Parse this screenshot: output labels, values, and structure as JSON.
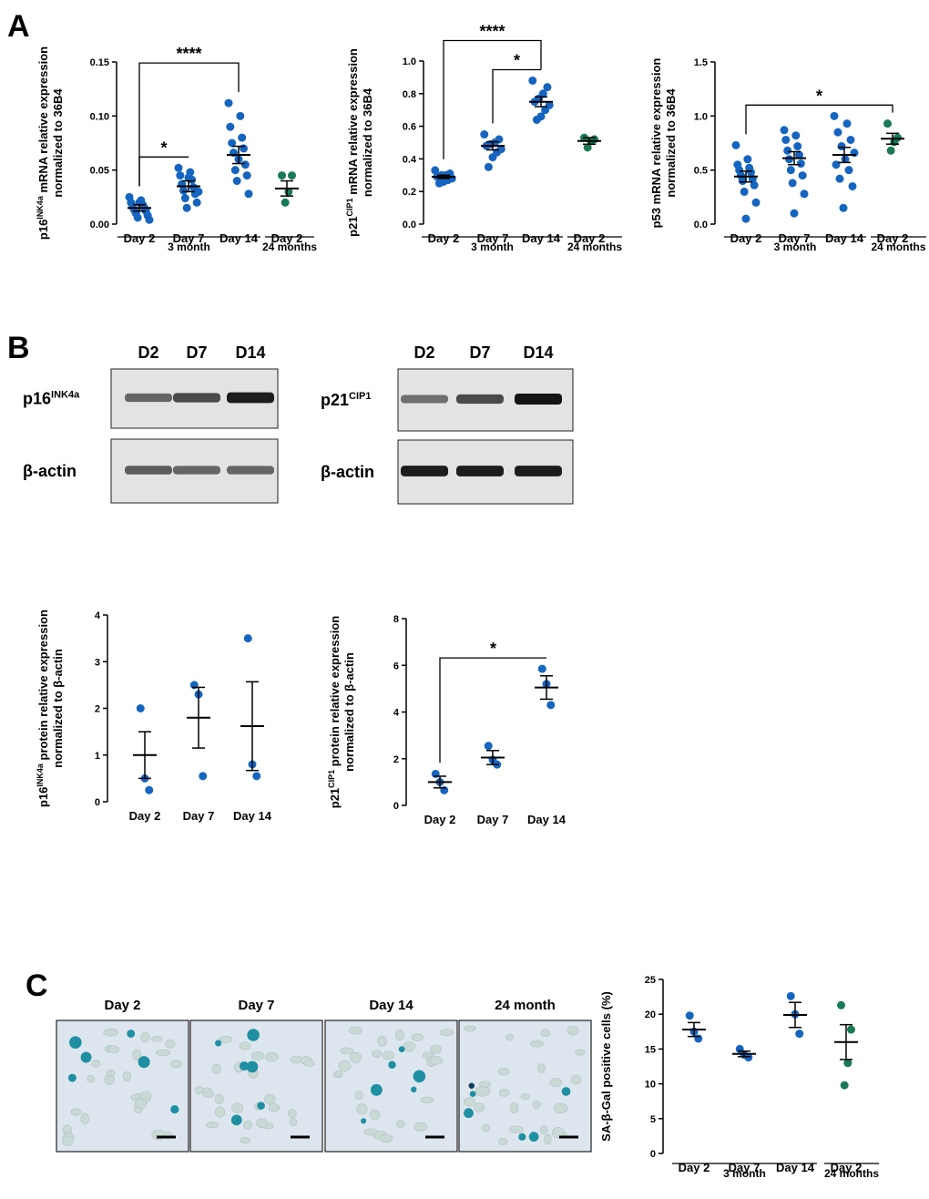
{
  "panel_labels": {
    "a": "A",
    "b": "B",
    "c": "C"
  },
  "colors": {
    "blue": "#1565c0",
    "green": "#1a7a55",
    "black": "#000000"
  },
  "chart_data": [
    {
      "id": "chartA1",
      "type": "scatter",
      "ylabel_html": [
        "p16",
        "INK4a",
        " mRNA relative expression"
      ],
      "ylabel2": "normalized to 36B4",
      "ylim": [
        0,
        0.15
      ],
      "ticks": [
        0.0,
        0.05,
        0.1,
        0.15
      ],
      "tick_labels": [
        "0.00",
        "0.05",
        "0.10",
        "0.15"
      ],
      "categories": [
        "Day 2",
        "Day 7",
        "Day 14",
        "Day 2"
      ],
      "groups": [
        {
          "label": "3 month",
          "from": 0,
          "to": 2
        },
        {
          "label": "24 months",
          "from": 3,
          "to": 3
        }
      ],
      "series": [
        {
          "name": "Day 2",
          "color": "blue",
          "mean": 0.015,
          "sem": 0.003,
          "points": [
            0.025,
            0.022,
            0.02,
            0.018,
            0.016,
            0.015,
            0.013,
            0.012,
            0.01,
            0.008,
            0.006,
            0.004,
            0.02
          ]
        },
        {
          "name": "Day 7",
          "color": "blue",
          "mean": 0.035,
          "sem": 0.005,
          "points": [
            0.052,
            0.048,
            0.045,
            0.041,
            0.037,
            0.034,
            0.031,
            0.028,
            0.024,
            0.02,
            0.015,
            0.03,
            0.043
          ]
        },
        {
          "name": "Day 14",
          "color": "blue",
          "mean": 0.064,
          "sem": 0.008,
          "points": [
            0.112,
            0.1,
            0.09,
            0.08,
            0.075,
            0.07,
            0.066,
            0.055,
            0.05,
            0.045,
            0.04,
            0.028,
            0.06
          ]
        },
        {
          "name": "Day 2",
          "color": "green",
          "mean": 0.033,
          "sem": 0.007,
          "points": [
            0.045,
            0.045,
            0.03,
            0.02
          ]
        }
      ],
      "sig": [
        {
          "from": 0,
          "to": 1,
          "label": "*"
        },
        {
          "from": 0,
          "to": 2,
          "label": "****"
        }
      ]
    },
    {
      "id": "chartA2",
      "type": "scatter",
      "ylabel_html": [
        "p21",
        "CIP1",
        " mRNA relative expression"
      ],
      "ylabel2": "normalized to 36B4",
      "ylim": [
        0,
        1.0
      ],
      "ticks": [
        0.0,
        0.2,
        0.4,
        0.6,
        0.8,
        1.0
      ],
      "tick_labels": [
        "0.0",
        "0.2",
        "0.4",
        "0.6",
        "0.8",
        "1.0"
      ],
      "categories": [
        "Day 2",
        "Day 7",
        "Day 14",
        "Day 2"
      ],
      "groups": [
        {
          "label": "3 month",
          "from": 0,
          "to": 2
        },
        {
          "label": "24 months",
          "from": 3,
          "to": 3
        }
      ],
      "series": [
        {
          "name": "Day 2",
          "color": "blue",
          "mean": 0.29,
          "sem": 0.01,
          "points": [
            0.33,
            0.31,
            0.3,
            0.3,
            0.29,
            0.28,
            0.27,
            0.26,
            0.25
          ]
        },
        {
          "name": "Day 7",
          "color": "blue",
          "mean": 0.48,
          "sem": 0.025,
          "points": [
            0.55,
            0.52,
            0.5,
            0.49,
            0.48,
            0.46,
            0.44,
            0.41,
            0.35
          ]
        },
        {
          "name": "Day 14",
          "color": "blue",
          "mean": 0.75,
          "sem": 0.03,
          "points": [
            0.88,
            0.84,
            0.8,
            0.77,
            0.75,
            0.73,
            0.7,
            0.66,
            0.64
          ]
        },
        {
          "name": "Day 2",
          "color": "green",
          "mean": 0.51,
          "sem": 0.02,
          "points": [
            0.53,
            0.52,
            0.51,
            0.47
          ]
        }
      ],
      "sig": [
        {
          "from": 1,
          "to": 2,
          "label": "*"
        },
        {
          "from": 0,
          "to": 2,
          "label": "****"
        }
      ]
    },
    {
      "id": "chartA3",
      "type": "scatter",
      "ylabel_html": [
        "p53 mRNA relative expression",
        "",
        ""
      ],
      "ylabel2": "normalized to 36B4",
      "ylim": [
        0,
        1.5
      ],
      "ticks": [
        0.0,
        0.5,
        1.0,
        1.5
      ],
      "tick_labels": [
        "0.0",
        "0.5",
        "1.0",
        "1.5"
      ],
      "categories": [
        "Day 2",
        "Day 7",
        "Day 14",
        "Day 2"
      ],
      "groups": [
        {
          "label": "3 month",
          "from": 0,
          "to": 2
        },
        {
          "label": "24 months",
          "from": 3,
          "to": 3
        }
      ],
      "series": [
        {
          "name": "Day 2",
          "color": "blue",
          "mean": 0.44,
          "sem": 0.05,
          "points": [
            0.73,
            0.6,
            0.55,
            0.52,
            0.5,
            0.48,
            0.45,
            0.42,
            0.4,
            0.36,
            0.3,
            0.2,
            0.05
          ]
        },
        {
          "name": "Day 7",
          "color": "blue",
          "mean": 0.61,
          "sem": 0.06,
          "points": [
            0.87,
            0.82,
            0.78,
            0.72,
            0.68,
            0.64,
            0.6,
            0.56,
            0.5,
            0.45,
            0.38,
            0.28,
            0.1
          ]
        },
        {
          "name": "Day 14",
          "color": "blue",
          "mean": 0.64,
          "sem": 0.07,
          "points": [
            1.0,
            0.93,
            0.85,
            0.78,
            0.72,
            0.66,
            0.6,
            0.55,
            0.5,
            0.42,
            0.35,
            0.15
          ]
        },
        {
          "name": "Day 2",
          "color": "green",
          "mean": 0.79,
          "sem": 0.05,
          "points": [
            0.93,
            0.8,
            0.76,
            0.68
          ]
        }
      ],
      "sig": [
        {
          "from": 0,
          "to": 3,
          "label": "*"
        }
      ]
    },
    {
      "id": "chartB1",
      "type": "scatter",
      "ylabel_html": [
        "p16",
        "INK4a",
        " protein relative expression"
      ],
      "ylabel2": "normalized to β-actin",
      "ylim": [
        0,
        4
      ],
      "ticks": [
        0,
        1,
        2,
        3,
        4
      ],
      "tick_labels": [
        "0",
        "1",
        "2",
        "3",
        "4"
      ],
      "categories": [
        "Day 2",
        "Day 7",
        "Day 14"
      ],
      "groups": [],
      "series": [
        {
          "name": "Day 2",
          "color": "blue",
          "mean": 1.0,
          "sem": 0.5,
          "points": [
            2.0,
            0.5,
            0.25
          ]
        },
        {
          "name": "Day 7",
          "color": "blue",
          "mean": 1.8,
          "sem": 0.65,
          "points": [
            2.5,
            2.3,
            0.55
          ]
        },
        {
          "name": "Day 14",
          "color": "blue",
          "mean": 1.62,
          "sem": 0.95,
          "points": [
            3.5,
            0.8,
            0.55
          ]
        }
      ],
      "sig": []
    },
    {
      "id": "chartB2",
      "type": "scatter",
      "ylabel_html": [
        "p21",
        "CIP1",
        " protein relative expression"
      ],
      "ylabel2": "normalized to β-actin",
      "ylim": [
        0,
        8
      ],
      "ticks": [
        0,
        2,
        4,
        6,
        8
      ],
      "tick_labels": [
        "0",
        "2",
        "4",
        "6",
        "8"
      ],
      "categories": [
        "Day 2",
        "Day 7",
        "Day 14"
      ],
      "groups": [],
      "series": [
        {
          "name": "Day 2",
          "color": "blue",
          "mean": 1.0,
          "sem": 0.25,
          "points": [
            1.35,
            1.0,
            0.65
          ]
        },
        {
          "name": "Day 7",
          "color": "blue",
          "mean": 2.05,
          "sem": 0.3,
          "points": [
            2.55,
            1.95,
            1.75
          ]
        },
        {
          "name": "Day 14",
          "color": "blue",
          "mean": 5.05,
          "sem": 0.5,
          "points": [
            5.85,
            5.2,
            4.3
          ]
        }
      ],
      "sig": [
        {
          "from": 0,
          "to": 2,
          "label": "*"
        }
      ]
    },
    {
      "id": "chartC",
      "type": "scatter",
      "ylabel_html": [
        "SA-β-Gal positive cells (%)",
        "",
        ""
      ],
      "ylabel2": "",
      "ylim": [
        0,
        25
      ],
      "ticks": [
        0,
        5,
        10,
        15,
        20,
        25
      ],
      "tick_labels": [
        "0",
        "5",
        "10",
        "15",
        "20",
        "25"
      ],
      "categories": [
        "Day 2",
        "Day 7",
        "Day 14",
        "Day 2"
      ],
      "groups": [
        {
          "label": "3 month",
          "from": 0,
          "to": 2
        },
        {
          "label": "24 months",
          "from": 3,
          "to": 3
        }
      ],
      "series": [
        {
          "name": "Day 2",
          "color": "blue",
          "mean": 17.8,
          "sem": 1.0,
          "points": [
            19.8,
            17.5,
            16.5
          ]
        },
        {
          "name": "Day 7",
          "color": "blue",
          "mean": 14.3,
          "sem": 0.4,
          "points": [
            15.0,
            14.2,
            13.8
          ]
        },
        {
          "name": "Day 14",
          "color": "blue",
          "mean": 19.9,
          "sem": 1.8,
          "points": [
            22.6,
            20.0,
            17.2
          ]
        },
        {
          "name": "Day 2",
          "color": "green",
          "mean": 16.0,
          "sem": 2.5,
          "points": [
            21.3,
            17.8,
            13.0,
            9.8
          ]
        }
      ],
      "sig": []
    }
  ],
  "blots": [
    {
      "id": "blot1",
      "lanes": [
        "D2",
        "D7",
        "D14"
      ],
      "rows": [
        {
          "label_parts": [
            "p16",
            "INK4a"
          ],
          "intensities": [
            0.55,
            0.7,
            0.95
          ]
        },
        {
          "label_parts": [
            "β-actin",
            ""
          ],
          "intensities": [
            0.6,
            0.55,
            0.55
          ]
        }
      ]
    },
    {
      "id": "blot2",
      "lanes": [
        "D2",
        "D7",
        "D14"
      ],
      "rows": [
        {
          "label_parts": [
            "p21",
            "CIP1"
          ],
          "intensities": [
            0.5,
            0.7,
            1.0
          ]
        },
        {
          "label_parts": [
            "β-actin",
            ""
          ],
          "intensities": [
            0.95,
            0.95,
            0.95
          ]
        }
      ]
    }
  ],
  "micrographs": [
    "Day 2",
    "Day 7",
    "Day 14",
    "24 month"
  ]
}
